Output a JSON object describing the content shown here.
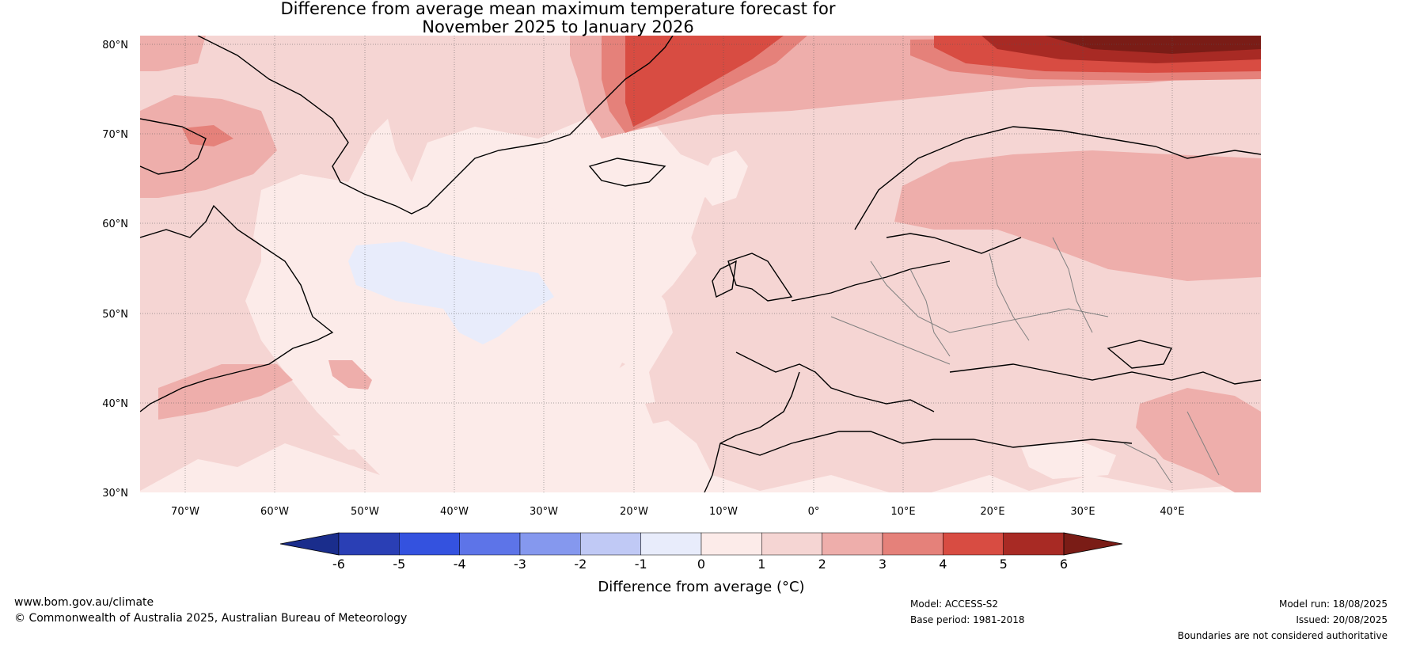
{
  "title": {
    "line1": "Difference from average mean maximum temperature forecast for",
    "line2": "November 2025 to January 2026"
  },
  "axes": {
    "lat_labels": [
      "80°N",
      "70°N",
      "60°N",
      "50°N",
      "40°N",
      "30°N"
    ],
    "lon_labels": [
      "70°W",
      "60°W",
      "50°W",
      "40°W",
      "30°W",
      "20°W",
      "10°W",
      "0°",
      "10°E",
      "20°E",
      "30°E",
      "40°E"
    ]
  },
  "colorbar": {
    "label": "Difference from average (°C)",
    "ticks": [
      "-6",
      "-5",
      "-4",
      "-3",
      "-2",
      "-1",
      "0",
      "1",
      "2",
      "3",
      "4",
      "5",
      "6"
    ],
    "colors": {
      "below": "#1a2d8c",
      "bins": [
        "#2a3fb5",
        "#3452df",
        "#5d74e8",
        "#8598ee",
        "#c0c9f5",
        "#e8ecfb",
        "#fcebe9",
        "#f5d5d3",
        "#eeaeab",
        "#e5817a",
        "#d84c42",
        "#a82a24"
      ],
      "above": "#7a1c16"
    }
  },
  "footer": {
    "website": "www.bom.gov.au/climate",
    "copyright": "© Commonwealth of Australia 2025, Australian Bureau of Meteorology",
    "model": "Model: ACCESS-S2",
    "base_period": "Base period: 1981-2018",
    "model_run": "Model run: 18/08/2025",
    "issued": "Issued: 20/08/2025",
    "disclaimer": "Boundaries are not considered authoritative"
  }
}
